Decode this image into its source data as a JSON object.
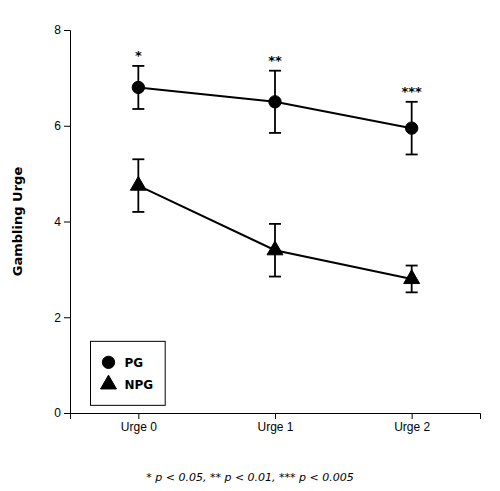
{
  "chart_data": {
    "type": "line",
    "categories": [
      "Urge 0",
      "Urge 1",
      "Urge 2"
    ],
    "ylabel": "Gambling Urge",
    "ylim": [
      0,
      8
    ],
    "yticks": [
      0,
      2,
      4,
      6,
      8
    ],
    "legend": "lower left",
    "series": [
      {
        "name": "PG",
        "color": "#000000",
        "marker": "circle",
        "line_style": "solid",
        "values": [
          6.8,
          6.5,
          5.95
        ],
        "errors": [
          0.45,
          0.65,
          0.55
        ]
      },
      {
        "name": "NPG",
        "color": "#000000",
        "marker": "triangle",
        "line_style": "solid",
        "values": [
          4.75,
          3.4,
          2.8
        ],
        "errors": [
          0.55,
          0.55,
          0.28
        ]
      }
    ],
    "significance_labels": [
      "*",
      "**",
      "***"
    ],
    "footnote": "* p < 0.05, ** p < 0.01, *** p < 0.005"
  }
}
